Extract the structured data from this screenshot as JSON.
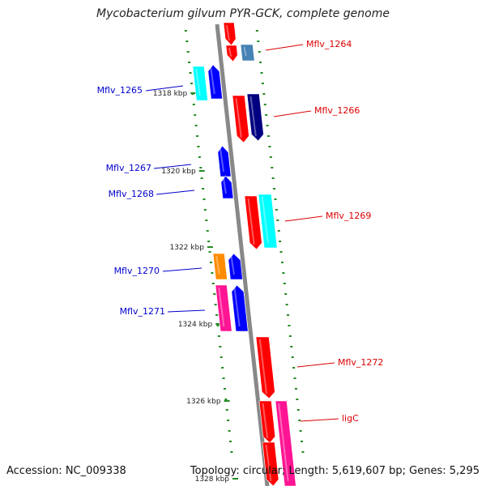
{
  "title": "Mycobacterium gilvum PYR-GCK, complete genome",
  "footer": {
    "accession": "Accession: NC_009338",
    "topology": "Topology: circular; Length: 5,619,607 bp; Genes: 5,295"
  },
  "ticks": [
    {
      "label": "1318 kbp"
    },
    {
      "label": "1320 kbp"
    },
    {
      "label": "1322 kbp"
    },
    {
      "label": "1324 kbp"
    },
    {
      "label": "1326 kbp"
    },
    {
      "label": "1328 kbp"
    }
  ],
  "colors": {
    "backbone": "#888888",
    "minus_label": "#0000cc",
    "plus_label": "#dd0000",
    "tick": "#228B22",
    "red": "#ff0000",
    "blue": "#0000ff",
    "navy": "#000080",
    "cyan": "#00ffff",
    "steelblue": "#4682b4",
    "orange": "#ff8c00",
    "pink": "#ff1493"
  },
  "gene_labels": [
    {
      "name": "Mflv_1264",
      "strand": "plus"
    },
    {
      "name": "Mflv_1265",
      "strand": "minus"
    },
    {
      "name": "Mflv_1266",
      "strand": "plus"
    },
    {
      "name": "Mflv_1267",
      "strand": "minus"
    },
    {
      "name": "Mflv_1268",
      "strand": "minus"
    },
    {
      "name": "Mflv_1269",
      "strand": "plus"
    },
    {
      "name": "Mflv_1270",
      "strand": "minus"
    },
    {
      "name": "Mflv_1271",
      "strand": "minus"
    },
    {
      "name": "Mflv_1272",
      "strand": "plus"
    },
    {
      "name": "ligC",
      "strand": "plus"
    }
  ]
}
